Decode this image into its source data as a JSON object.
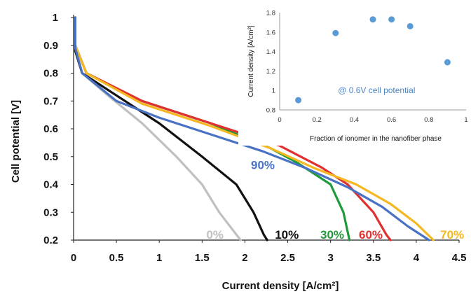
{
  "chart_data": [
    {
      "type": "line",
      "title": "",
      "xlabel": "Current density [A/cm²]",
      "ylabel": "Cell potential [V]",
      "xlim": [
        0,
        4.5
      ],
      "ylim": [
        0.2,
        1.0
      ],
      "x_ticks": [
        0,
        0.5,
        1,
        1.5,
        2,
        2.5,
        3,
        3.5,
        4,
        4.5
      ],
      "y_ticks": [
        0.2,
        0.3,
        0.4,
        0.5,
        0.6,
        0.7,
        0.8,
        0.9,
        1
      ],
      "x_tick_labels": [
        "0",
        "0.5",
        "1",
        "1.5",
        "2",
        "2.5",
        "3",
        "3.5",
        "4",
        "4.5"
      ],
      "y_tick_labels": [
        "0.2",
        "0.3",
        "0.4",
        "0.5",
        "0.6",
        "0.7",
        "0.8",
        "0.9",
        "1"
      ],
      "grid": false,
      "series": [
        {
          "name": "0%",
          "color": "#c0c0c0",
          "points": [
            [
              0.02,
              1.0
            ],
            [
              0.02,
              0.88
            ],
            [
              0.1,
              0.8
            ],
            [
              0.4,
              0.72
            ],
            [
              0.8,
              0.62
            ],
            [
              1.2,
              0.5
            ],
            [
              1.5,
              0.4
            ],
            [
              1.7,
              0.3
            ],
            [
              1.9,
              0.22
            ],
            [
              1.95,
              0.2
            ]
          ]
        },
        {
          "name": "10%",
          "color": "#111111",
          "points": [
            [
              0.02,
              1.0
            ],
            [
              0.02,
              0.88
            ],
            [
              0.1,
              0.8
            ],
            [
              0.5,
              0.72
            ],
            [
              1.0,
              0.62
            ],
            [
              1.5,
              0.5
            ],
            [
              1.9,
              0.4
            ],
            [
              2.1,
              0.3
            ],
            [
              2.22,
              0.22
            ],
            [
              2.26,
              0.2
            ]
          ]
        },
        {
          "name": "30%",
          "color": "#1e9a3a",
          "points": [
            [
              0.02,
              1.0
            ],
            [
              0.02,
              0.9
            ],
            [
              0.15,
              0.8
            ],
            [
              0.8,
              0.7
            ],
            [
              1.6,
              0.62
            ],
            [
              2.3,
              0.53
            ],
            [
              2.6,
              0.48
            ],
            [
              3.0,
              0.4
            ],
            [
              3.15,
              0.3
            ],
            [
              3.22,
              0.2
            ]
          ]
        },
        {
          "name": "60%",
          "color": "#e03030",
          "points": [
            [
              0.02,
              1.0
            ],
            [
              0.02,
              0.9
            ],
            [
              0.15,
              0.8
            ],
            [
              0.8,
              0.7
            ],
            [
              1.6,
              0.62
            ],
            [
              2.4,
              0.54
            ],
            [
              2.9,
              0.46
            ],
            [
              3.2,
              0.4
            ],
            [
              3.5,
              0.3
            ],
            [
              3.65,
              0.22
            ],
            [
              3.7,
              0.2
            ]
          ]
        },
        {
          "name": "70%",
          "color": "#f5b820",
          "points": [
            [
              0.02,
              1.0
            ],
            [
              0.02,
              0.9
            ],
            [
              0.15,
              0.8
            ],
            [
              0.8,
              0.69
            ],
            [
              1.6,
              0.61
            ],
            [
              2.3,
              0.53
            ],
            [
              2.8,
              0.46
            ],
            [
              3.3,
              0.4
            ],
            [
              3.7,
              0.33
            ],
            [
              4.0,
              0.26
            ],
            [
              4.2,
              0.2
            ]
          ]
        },
        {
          "name": "90%",
          "color": "#4a72c4",
          "points": [
            [
              0.02,
              1.0
            ],
            [
              0.02,
              0.89
            ],
            [
              0.1,
              0.8
            ],
            [
              0.5,
              0.7
            ],
            [
              1.0,
              0.64
            ],
            [
              1.6,
              0.58
            ],
            [
              2.2,
              0.52
            ],
            [
              2.7,
              0.46
            ],
            [
              3.2,
              0.39
            ],
            [
              3.6,
              0.32
            ],
            [
              3.9,
              0.25
            ],
            [
              4.15,
              0.2
            ]
          ]
        }
      ]
    },
    {
      "type": "scatter",
      "title": "",
      "annotation": "@ 0.6V cell potential",
      "xlabel": "Fraction of ionomer in the nanofiber phase",
      "ylabel": "Current  density [A/cm²]",
      "xlim": [
        0,
        1
      ],
      "ylim": [
        0.8,
        1.8
      ],
      "x_ticks": [
        0,
        0.2,
        0.4,
        0.6,
        0.8,
        1
      ],
      "y_ticks": [
        0.8,
        1,
        1.2,
        1.4,
        1.6,
        1.8
      ],
      "x_tick_labels": [
        "0",
        "0.2",
        "0.4",
        "0.6",
        "0.8",
        "1"
      ],
      "y_tick_labels": [
        "0.8",
        "1",
        "1.2",
        "1.4",
        "1.6",
        "1.8"
      ],
      "grid": false,
      "marker_color": "#5b9bd5",
      "points": [
        [
          0.1,
          0.9
        ],
        [
          0.3,
          1.59
        ],
        [
          0.5,
          1.73
        ],
        [
          0.6,
          1.73
        ],
        [
          0.7,
          1.66
        ],
        [
          0.9,
          1.29
        ]
      ]
    }
  ]
}
